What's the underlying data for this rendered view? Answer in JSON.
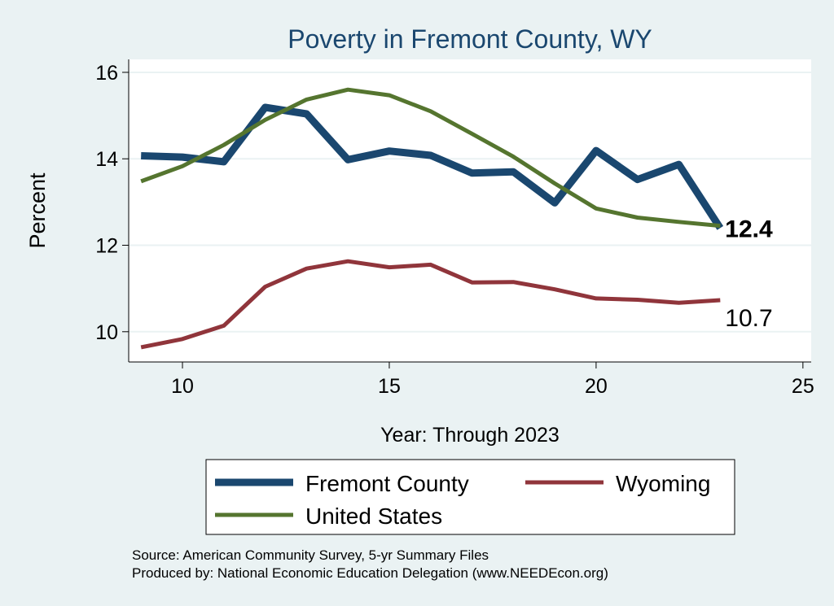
{
  "chart_data": {
    "type": "line",
    "title": "Poverty in Fremont County, WY",
    "xlabel": "Year: Through 2023",
    "ylabel": "Percent",
    "xlim": [
      8.7,
      25.2
    ],
    "ylim": [
      9.3,
      16.3
    ],
    "x_ticks": [
      10,
      15,
      20,
      25
    ],
    "y_ticks": [
      10,
      12,
      14,
      16
    ],
    "grid": true,
    "legend_position": "bottom",
    "x": [
      9,
      10,
      11,
      12,
      13,
      14,
      15,
      16,
      17,
      18,
      19,
      20,
      21,
      22,
      23
    ],
    "series": [
      {
        "name": "Fremont County",
        "color": "#1a476f",
        "width": 9,
        "values": [
          14.07,
          14.04,
          13.93,
          15.19,
          15.04,
          13.98,
          14.18,
          14.08,
          13.67,
          13.7,
          12.98,
          14.19,
          13.52,
          13.87,
          12.4
        ]
      },
      {
        "name": "Wyoming",
        "color": "#90353b",
        "width": 5,
        "values": [
          9.64,
          9.83,
          10.14,
          11.04,
          11.46,
          11.63,
          11.49,
          11.55,
          11.14,
          11.15,
          10.98,
          10.77,
          10.74,
          10.67,
          10.73
        ]
      },
      {
        "name": "United States",
        "color": "#55752f",
        "width": 5,
        "values": [
          13.48,
          13.83,
          14.32,
          14.9,
          15.37,
          15.6,
          15.47,
          15.1,
          14.58,
          14.05,
          13.43,
          12.85,
          12.64,
          12.54,
          12.45
        ]
      }
    ],
    "end_labels": [
      {
        "series": "Fremont County",
        "text": "12.4"
      },
      {
        "series": "United States",
        "text": "12.4"
      },
      {
        "series": "Wyoming",
        "text": "10.7"
      }
    ],
    "notes": [
      "Source: American Community Survey, 5-yr Summary Files",
      "Produced by: National Economic Education Delegation (www.NEEDEcon.org)"
    ]
  },
  "colors": {
    "background": "#eaf2f3",
    "plot_background": "#ffffff",
    "grid": "#eaf2f3",
    "title": "#1a476f"
  }
}
